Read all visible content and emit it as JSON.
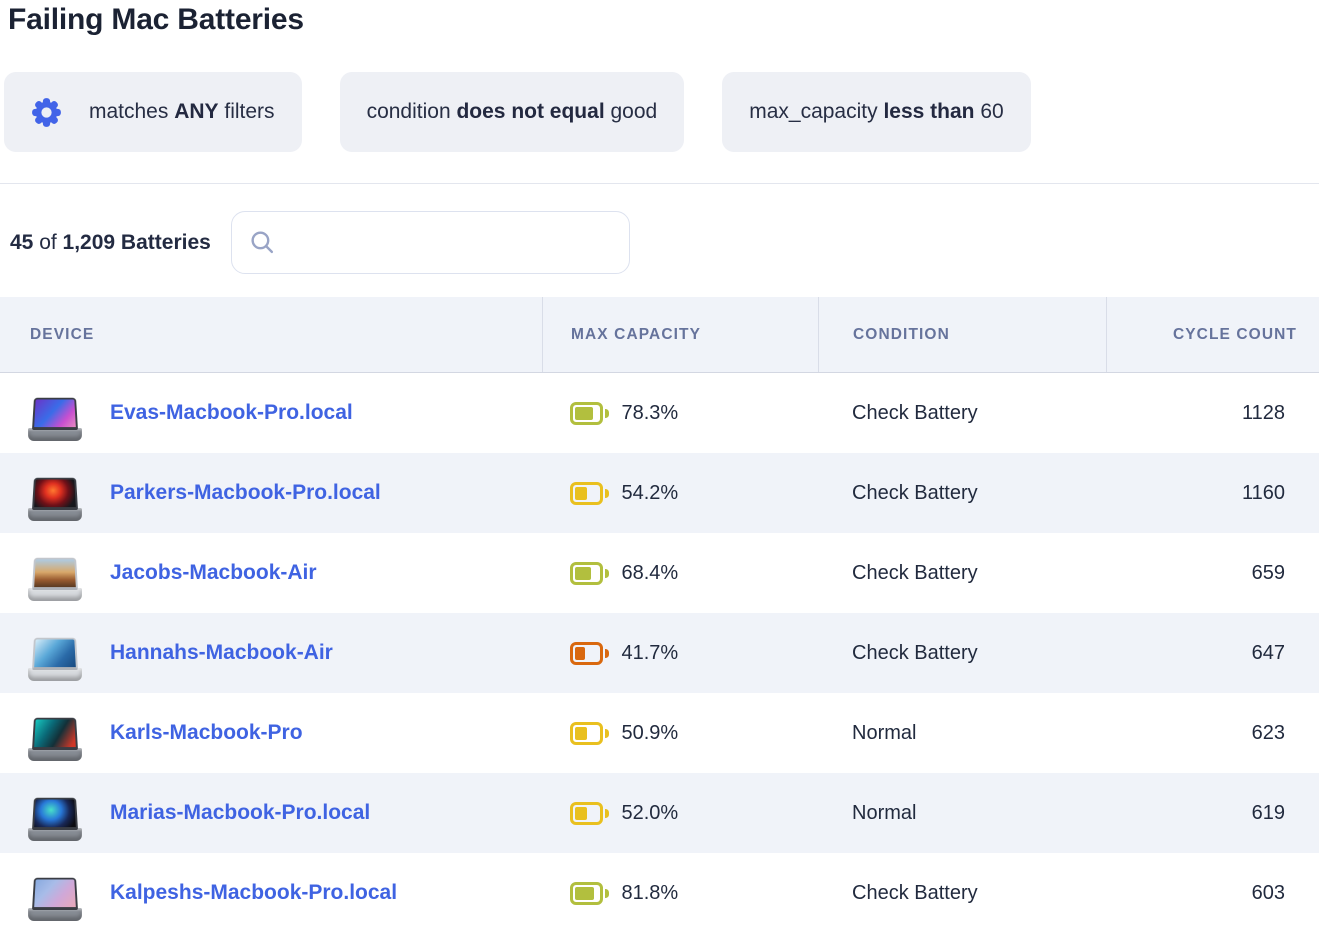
{
  "page": {
    "title": "Failing Mac Batteries"
  },
  "colors": {
    "accent_blue": "#3f63e2",
    "gear_blue": "#4264e8",
    "battery_good": "#b2bf3e",
    "battery_warn": "#e9c01f",
    "battery_low": "#d9680f",
    "header_text": "#66739c",
    "row_alt_bg": "#f0f3f9"
  },
  "filters": {
    "mode_chip": {
      "pre": "matches ",
      "bold": "ANY",
      "post": " filters",
      "icon": "gear-icon"
    },
    "chips": [
      {
        "pre": "condition ",
        "bold": "does not equal",
        "post": " good"
      },
      {
        "pre": "max_capacity ",
        "bold": "less than",
        "post": " 60"
      }
    ]
  },
  "count": {
    "shown": "45",
    "connector": " of ",
    "total": "1,209 Batteries"
  },
  "search": {
    "value": "",
    "placeholder": "",
    "icon": "search-icon"
  },
  "table": {
    "columns": [
      "DEVICE",
      "MAX CAPACITY",
      "CONDITION",
      "CYCLE COUNT"
    ],
    "rows": [
      {
        "device": "Evas-Macbook-Pro.local",
        "max_capacity": "78.3%",
        "max_capacity_pct": 78.3,
        "battery_color": "#b2bf3e",
        "condition": "Check Battery",
        "cycle_count": "1128",
        "thumbnail": {
          "finish": "spacegray",
          "wallpaper": "linear-gradient(130deg,#6a35c8 0%,#3a6ce8 45%,#c84fd0 75%,#e88bc0 100%)"
        }
      },
      {
        "device": "Parkers-Macbook-Pro.local",
        "max_capacity": "54.2%",
        "max_capacity_pct": 54.2,
        "battery_color": "#e9c01f",
        "condition": "Check Battery",
        "cycle_count": "1160",
        "thumbnail": {
          "finish": "spacegray",
          "wallpaper": "radial-gradient(circle at 45% 42%,#ff7a30 0%,#e03020 28%,#701018 55%,#17171c 82%)"
        }
      },
      {
        "device": "Jacobs-Macbook-Air",
        "max_capacity": "68.4%",
        "max_capacity_pct": 68.4,
        "battery_color": "#b2bf3e",
        "condition": "Check Battery",
        "cycle_count": "659",
        "thumbnail": {
          "finish": "silver",
          "wallpaper": "linear-gradient(180deg,#aecbe2 0%,#d8a86a 48%,#9a5c30 75%,#5a3a22 100%)"
        }
      },
      {
        "device": "Hannahs-Macbook-Air",
        "max_capacity": "41.7%",
        "max_capacity_pct": 41.7,
        "battery_color": "#d9680f",
        "condition": "Check Battery",
        "cycle_count": "647",
        "thumbnail": {
          "finish": "silver",
          "wallpaper": "linear-gradient(130deg,#d6ecf8 0%,#5aa8d8 40%,#2a6aa8 70%,#184a80 100%)"
        }
      },
      {
        "device": "Karls-Macbook-Pro",
        "max_capacity": "50.9%",
        "max_capacity_pct": 50.9,
        "battery_color": "#e9c01f",
        "condition": "Normal",
        "cycle_count": "623",
        "thumbnail": {
          "finish": "spacegray",
          "wallpaper": "linear-gradient(120deg,#18c8c0 0%,#0a6a78 35%,#133038 60%,#d03828 92%)"
        }
      },
      {
        "device": "Marias-Macbook-Pro.local",
        "max_capacity": "52.0%",
        "max_capacity_pct": 52.0,
        "battery_color": "#e9c01f",
        "condition": "Normal",
        "cycle_count": "619",
        "thumbnail": {
          "finish": "spacegray",
          "wallpaper": "radial-gradient(circle at 40% 40%,#48e0c8 0%,#2878d8 35%,#182858 62%,#0c0c12 88%)"
        }
      },
      {
        "device": "Kalpeshs-Macbook-Pro.local",
        "max_capacity": "81.8%",
        "max_capacity_pct": 81.8,
        "battery_color": "#b2bf3e",
        "condition": "Check Battery",
        "cycle_count": "603",
        "thumbnail": {
          "finish": "spacegray",
          "wallpaper": "linear-gradient(130deg,#88aadf 0%,#a8bce8 35%,#d0a8d8 65%,#e8a8b8 100%)"
        }
      }
    ]
  }
}
